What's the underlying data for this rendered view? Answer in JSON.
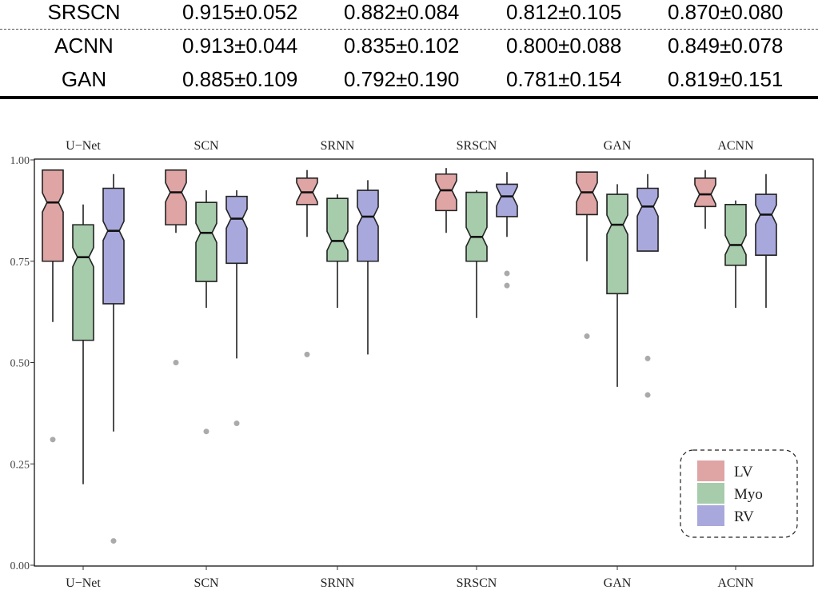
{
  "table": {
    "rows": [
      {
        "name": "SRSCN",
        "values": [
          "0.915±0.052",
          "0.882±0.084",
          "0.812±0.105",
          "0.870±0.080"
        ]
      },
      {
        "name": "ACNN",
        "values": [
          "0.913±0.044",
          "0.835±0.102",
          "0.800±0.088",
          "0.849±0.078"
        ]
      },
      {
        "name": "GAN",
        "values": [
          "0.885±0.109",
          "0.792±0.190",
          "0.781±0.154",
          "0.819±0.151"
        ]
      }
    ]
  },
  "chart_data": {
    "type": "boxplot",
    "notched": true,
    "categories": [
      "U−Net",
      "SCN",
      "SRNN",
      "SRSCN",
      "GAN",
      "ACNN"
    ],
    "yticks": [
      "0.00",
      "0.25",
      "0.50",
      "0.75",
      "1.00"
    ],
    "ylim": [
      0,
      1.0
    ],
    "legend": {
      "position": "bottom-right",
      "entries": [
        "LV",
        "Myo",
        "RV"
      ]
    },
    "colors": {
      "LV": "#dfa4a4",
      "Myo": "#a6ccab",
      "RV": "#a8a8dc"
    },
    "series": [
      {
        "name": "LV",
        "boxes": [
          {
            "whislo": 0.6,
            "q1": 0.75,
            "med": 0.895,
            "q3": 0.975,
            "whishi": 0.975,
            "fliers": [
              0.31
            ]
          },
          {
            "whislo": 0.82,
            "q1": 0.84,
            "med": 0.92,
            "q3": 0.975,
            "whishi": 0.975,
            "fliers": [
              0.5
            ]
          },
          {
            "whislo": 0.81,
            "q1": 0.89,
            "med": 0.92,
            "q3": 0.955,
            "whishi": 0.975,
            "fliers": [
              0.52
            ]
          },
          {
            "whislo": 0.82,
            "q1": 0.875,
            "med": 0.925,
            "q3": 0.965,
            "whishi": 0.98,
            "fliers": []
          },
          {
            "whislo": 0.75,
            "q1": 0.865,
            "med": 0.92,
            "q3": 0.97,
            "whishi": 0.97,
            "fliers": [
              0.565
            ]
          },
          {
            "whislo": 0.83,
            "q1": 0.885,
            "med": 0.915,
            "q3": 0.955,
            "whishi": 0.975,
            "fliers": []
          }
        ]
      },
      {
        "name": "Myo",
        "boxes": [
          {
            "whislo": 0.2,
            "q1": 0.555,
            "med": 0.76,
            "q3": 0.84,
            "whishi": 0.89,
            "fliers": []
          },
          {
            "whislo": 0.635,
            "q1": 0.7,
            "med": 0.82,
            "q3": 0.895,
            "whishi": 0.925,
            "fliers": [
              0.33
            ]
          },
          {
            "whislo": 0.635,
            "q1": 0.75,
            "med": 0.8,
            "q3": 0.905,
            "whishi": 0.915,
            "fliers": []
          },
          {
            "whislo": 0.61,
            "q1": 0.75,
            "med": 0.81,
            "q3": 0.92,
            "whishi": 0.925,
            "fliers": []
          },
          {
            "whislo": 0.44,
            "q1": 0.67,
            "med": 0.84,
            "q3": 0.915,
            "whishi": 0.94,
            "fliers": []
          },
          {
            "whislo": 0.635,
            "q1": 0.74,
            "med": 0.79,
            "q3": 0.89,
            "whishi": 0.9,
            "fliers": []
          }
        ]
      },
      {
        "name": "RV",
        "boxes": [
          {
            "whislo": 0.33,
            "q1": 0.645,
            "med": 0.825,
            "q3": 0.93,
            "whishi": 0.965,
            "fliers": [
              0.06
            ]
          },
          {
            "whislo": 0.51,
            "q1": 0.745,
            "med": 0.855,
            "q3": 0.91,
            "whishi": 0.925,
            "fliers": [
              0.35
            ]
          },
          {
            "whislo": 0.52,
            "q1": 0.75,
            "med": 0.86,
            "q3": 0.925,
            "whishi": 0.95,
            "fliers": []
          },
          {
            "whislo": 0.81,
            "q1": 0.86,
            "med": 0.91,
            "q3": 0.94,
            "whishi": 0.97,
            "fliers": [
              0.72,
              0.69
            ]
          },
          {
            "whislo": 0.775,
            "q1": 0.775,
            "med": 0.885,
            "q3": 0.93,
            "whishi": 0.965,
            "fliers": [
              0.51,
              0.42
            ]
          },
          {
            "whislo": 0.635,
            "q1": 0.765,
            "med": 0.865,
            "q3": 0.915,
            "whishi": 0.965,
            "fliers": []
          }
        ]
      }
    ]
  }
}
